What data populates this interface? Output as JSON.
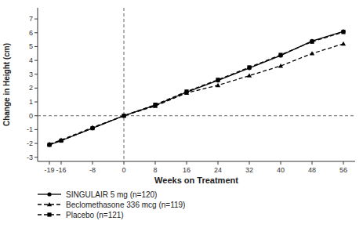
{
  "chart_data": {
    "type": "line",
    "xlabel": "Weeks on Treatment",
    "ylabel": "Change in Height (cm)",
    "x": [
      -19,
      -16,
      -8,
      0,
      8,
      16,
      24,
      32,
      40,
      48,
      56
    ],
    "series": [
      {
        "name": "SINGULAIR 5 mg (n=120)",
        "color": "#000000",
        "marker": "circle",
        "line_style": "solid",
        "values": [
          -2.1,
          -1.8,
          -0.9,
          0.0,
          0.75,
          1.7,
          2.55,
          3.45,
          4.35,
          5.4,
          6.1
        ]
      },
      {
        "name": "Beclomethasone 336 mcg (n=119)",
        "color": "#000000",
        "marker": "triangle",
        "line_style": "dashed",
        "values": [
          -2.05,
          -1.75,
          -0.85,
          0.0,
          0.7,
          1.65,
          2.2,
          2.9,
          3.6,
          4.5,
          5.2
        ]
      },
      {
        "name": "Placebo (n=121)",
        "color": "#000000",
        "marker": "square",
        "line_style": "dashed",
        "values": [
          -2.1,
          -1.8,
          -0.9,
          0.0,
          0.8,
          1.75,
          2.6,
          3.5,
          4.4,
          5.35,
          6.05
        ]
      }
    ],
    "xlim": [
      -22,
      59
    ],
    "ylim": [
      -3.3,
      7.8
    ],
    "xticks": [
      -19,
      -16,
      -8,
      0,
      8,
      16,
      24,
      32,
      40,
      48,
      56
    ],
    "yticks": [
      -3,
      -2,
      -1,
      0,
      1,
      2,
      3,
      4,
      5,
      6,
      7
    ],
    "vlines": [
      0
    ],
    "hlines": [
      0
    ],
    "grid": false,
    "legend": "bottom"
  }
}
